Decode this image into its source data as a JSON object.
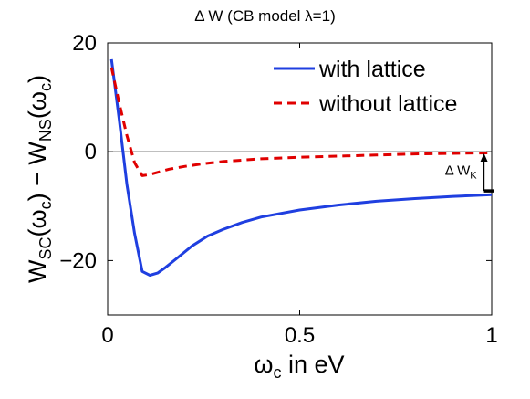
{
  "chart_data": {
    "type": "line",
    "title": "Δ W (CB model λ=1)",
    "xlabel": "ω",
    "xlabel_sub": "c",
    "xlabel_suffix": " in eV",
    "ylabel_parts": {
      "a": "W",
      "a_sub": "SC",
      "a_mid": "(ω",
      "a_mid_sub": "c",
      "a_close": ")",
      "minus": " − ",
      "b": "W",
      "b_sub": "NS",
      "b_mid": "(ω",
      "b_mid_sub": "c",
      "b_close": ")"
    },
    "xlim": [
      0,
      1
    ],
    "ylim": [
      -30,
      20
    ],
    "xticks": [
      0,
      0.5,
      1
    ],
    "xtick_labels": [
      "0",
      "0.5",
      "1"
    ],
    "yticks": [
      -20,
      0,
      20
    ],
    "ytick_labels": [
      "−20",
      "0",
      "20"
    ],
    "grid": false,
    "legend_position": "top-right",
    "zero_line": true,
    "series": [
      {
        "name": "with lattice",
        "color": "#1f3fe0",
        "style": "solid",
        "x": [
          0.01,
          0.03,
          0.05,
          0.07,
          0.09,
          0.11,
          0.13,
          0.15,
          0.18,
          0.22,
          0.26,
          0.3,
          0.35,
          0.4,
          0.5,
          0.6,
          0.7,
          0.8,
          0.9,
          1.0
        ],
        "y": [
          17,
          6,
          -6,
          -15,
          -22,
          -22.7,
          -22.3,
          -21.3,
          -19.6,
          -17.3,
          -15.5,
          -14.3,
          -13.0,
          -12.0,
          -10.7,
          -9.8,
          -9.1,
          -8.6,
          -8.2,
          -7.9
        ]
      },
      {
        "name": "without lattice",
        "color": "#e00000",
        "style": "dashed",
        "x": [
          0.01,
          0.03,
          0.05,
          0.07,
          0.09,
          0.11,
          0.13,
          0.16,
          0.2,
          0.25,
          0.3,
          0.4,
          0.5,
          0.6,
          0.7,
          0.8,
          0.9,
          1.0
        ],
        "y": [
          15.5,
          9,
          3,
          -2,
          -4.4,
          -4.2,
          -3.8,
          -3.2,
          -2.7,
          -2.2,
          -1.8,
          -1.3,
          -1.0,
          -0.8,
          -0.6,
          -0.4,
          -0.3,
          -0.2
        ]
      }
    ],
    "annotation": {
      "label": "Δ W",
      "label_sub": "K",
      "x": 0.98,
      "y_from": -7.2,
      "y_to": -0.3
    }
  }
}
